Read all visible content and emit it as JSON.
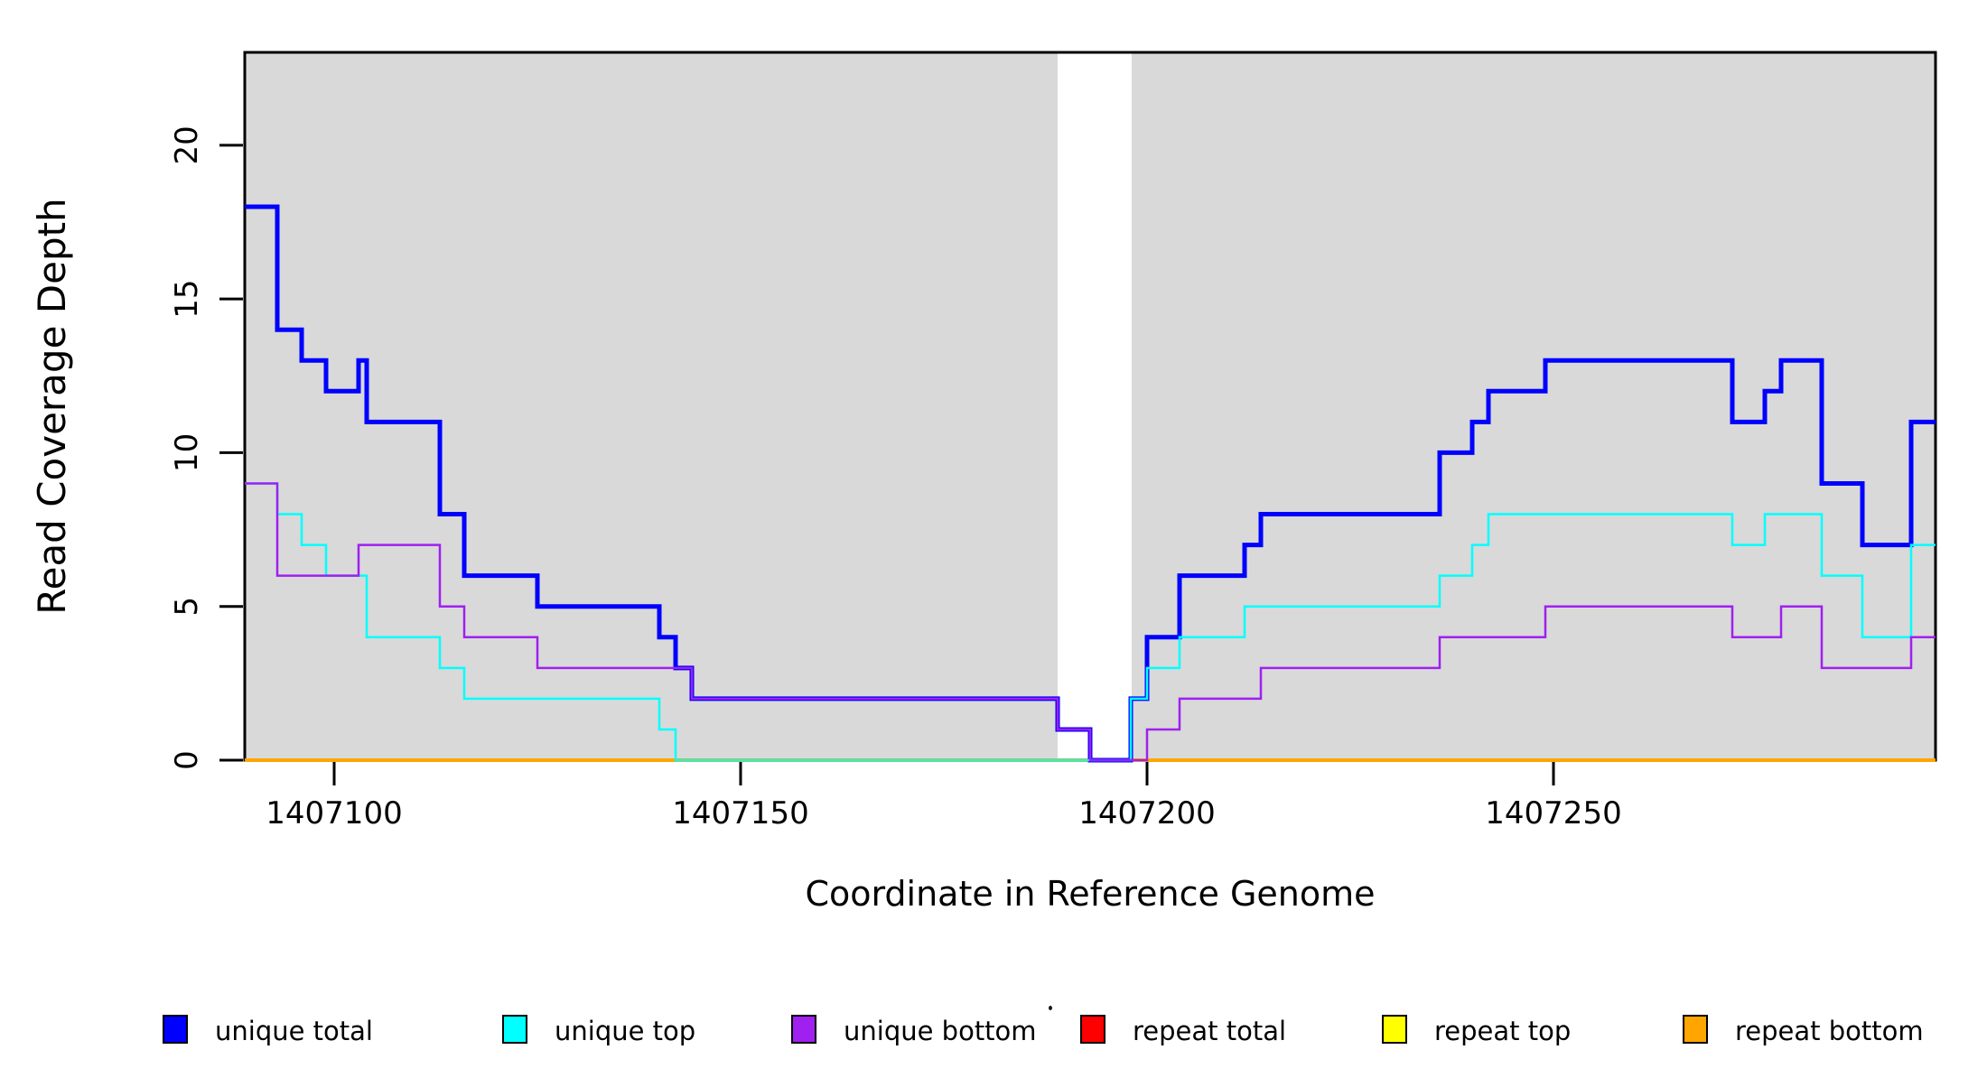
{
  "chart_data": {
    "type": "line",
    "interpolation": "step-after",
    "xlabel": "Coordinate in Reference Genome",
    "ylabel": "Read Coverage Depth",
    "xlim": [
      1407089,
      1407297
    ],
    "ylim": [
      0,
      23.02
    ],
    "x_ticks": [
      1407100,
      1407150,
      1407200,
      1407250
    ],
    "y_ticks": [
      0,
      5,
      10,
      15,
      20
    ],
    "grid": false,
    "legend_position": "bottom",
    "plot_background_color": "#D9D9D9",
    "gap_band": {
      "x0": 1407189,
      "x1": 1407198.1,
      "color": "#FFFFFF"
    },
    "background_bands": [
      {
        "x0": 1407089,
        "x1": 1407189,
        "color": "#D9D9D9"
      },
      {
        "x0": 1407198.1,
        "x1": 1407297,
        "color": "#D9D9D9"
      }
    ],
    "series": [
      {
        "name": "repeat total",
        "color": "#FF0000",
        "width": 2.5,
        "points": [
          [
            1407089,
            0
          ],
          [
            1407297,
            0
          ]
        ]
      },
      {
        "name": "repeat top",
        "color": "#FFFF00",
        "width": 2.5,
        "points": [
          [
            1407089,
            0
          ],
          [
            1407297,
            0
          ]
        ]
      },
      {
        "name": "repeat bottom",
        "color": "#FFA500",
        "width": 4,
        "points": [
          [
            1407089,
            0
          ],
          [
            1407297,
            0
          ]
        ]
      },
      {
        "name": "unique total",
        "color": "#0000FF",
        "width": 5,
        "points": [
          [
            1407089,
            18
          ],
          [
            1407093,
            14
          ],
          [
            1407096,
            13
          ],
          [
            1407099,
            12
          ],
          [
            1407103,
            13
          ],
          [
            1407104,
            11
          ],
          [
            1407113,
            8
          ],
          [
            1407116,
            6
          ],
          [
            1407125,
            5
          ],
          [
            1407140,
            4
          ],
          [
            1407142,
            3
          ],
          [
            1407144,
            2
          ],
          [
            1407189,
            1
          ],
          [
            1407193,
            0
          ],
          [
            1407198,
            2
          ],
          [
            1407200,
            4
          ],
          [
            1407204,
            6
          ],
          [
            1407212,
            7
          ],
          [
            1407214,
            8
          ],
          [
            1407236,
            10
          ],
          [
            1407240,
            11
          ],
          [
            1407242,
            12
          ],
          [
            1407249,
            13
          ],
          [
            1407272,
            11
          ],
          [
            1407276,
            12
          ],
          [
            1407278,
            13
          ],
          [
            1407283,
            9
          ],
          [
            1407288,
            7
          ],
          [
            1407294,
            11
          ]
        ]
      },
      {
        "name": "unique top",
        "color": "#00FFFF",
        "width": 2.5,
        "points": [
          [
            1407089,
            9
          ],
          [
            1407093,
            8
          ],
          [
            1407096,
            7
          ],
          [
            1407099,
            6
          ],
          [
            1407104,
            4
          ],
          [
            1407113,
            3
          ],
          [
            1407116,
            2
          ],
          [
            1407140,
            1
          ],
          [
            1407142,
            0
          ],
          [
            1407198,
            2
          ],
          [
            1407200,
            3
          ],
          [
            1407204,
            4
          ],
          [
            1407212,
            5
          ],
          [
            1407236,
            6
          ],
          [
            1407240,
            7
          ],
          [
            1407242,
            8
          ],
          [
            1407272,
            7
          ],
          [
            1407276,
            8
          ],
          [
            1407283,
            6
          ],
          [
            1407288,
            4
          ],
          [
            1407294,
            7
          ]
        ]
      },
      {
        "name": "unique bottom",
        "color": "#A020F0",
        "width": 2.5,
        "points": [
          [
            1407089,
            9
          ],
          [
            1407093,
            6
          ],
          [
            1407103,
            7
          ],
          [
            1407113,
            5
          ],
          [
            1407116,
            4
          ],
          [
            1407125,
            3
          ],
          [
            1407144,
            2
          ],
          [
            1407189,
            1
          ],
          [
            1407193,
            0
          ],
          [
            1407200,
            1
          ],
          [
            1407204,
            2
          ],
          [
            1407214,
            3
          ],
          [
            1407236,
            4
          ],
          [
            1407249,
            5
          ],
          [
            1407272,
            4
          ],
          [
            1407278,
            5
          ],
          [
            1407283,
            3
          ],
          [
            1407294,
            4
          ]
        ]
      }
    ],
    "legend": [
      {
        "label": "unique total",
        "color": "#0000FF"
      },
      {
        "label": "unique top",
        "color": "#00FFFF"
      },
      {
        "label": "unique bottom",
        "color": "#A020F0"
      },
      {
        "label": "repeat total",
        "color": "#FF0000"
      },
      {
        "label": "repeat top",
        "color": "#FFFF00"
      },
      {
        "label": "repeat bottom",
        "color": "#FFA500"
      }
    ]
  }
}
